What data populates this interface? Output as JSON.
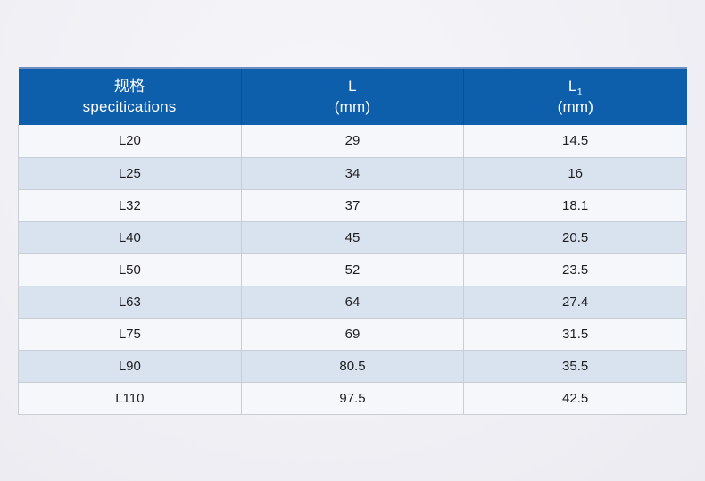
{
  "table": {
    "header": {
      "col_spec": {
        "line1": "规格",
        "line2": "specitications"
      },
      "col_l": {
        "line1": "L",
        "line2": "(mm)"
      },
      "col_l1": {
        "base": "L",
        "sub": "1",
        "line2": "(mm)"
      }
    },
    "rows": [
      [
        "L20",
        "29",
        "14.5"
      ],
      [
        "L25",
        "34",
        "16"
      ],
      [
        "L32",
        "37",
        "18.1"
      ],
      [
        "L40",
        "45",
        "20.5"
      ],
      [
        "L50",
        "52",
        "23.5"
      ],
      [
        "L63",
        "64",
        "27.4"
      ],
      [
        "L75",
        "69",
        "31.5"
      ],
      [
        "L90",
        "80.5",
        "35.5"
      ],
      [
        "L110",
        "97.5",
        "42.5"
      ]
    ],
    "colors": {
      "header_bg": "#0d5eab",
      "header_text": "#ffffff",
      "header_top_border": "#6d8fc0",
      "row_odd_bg": "#f6f7fa",
      "row_even_bg": "#d9e2ef",
      "cell_border": "#c8cdd6",
      "body_text": "#1f1f1f",
      "page_bg": "#f0f0f5"
    }
  }
}
